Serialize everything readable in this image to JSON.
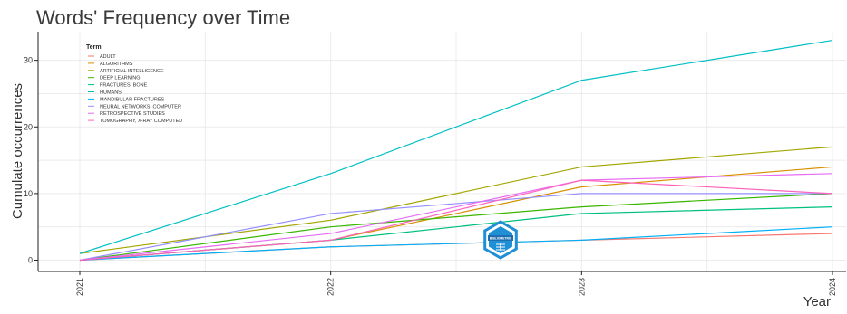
{
  "chart_data": {
    "type": "line",
    "title": "Words' Frequency over Time",
    "xlabel": "Year",
    "ylabel": "Cumulate occurrences",
    "x": [
      2021,
      2022,
      2023,
      2024
    ],
    "xticks": [
      "2021",
      "2022",
      "2023",
      "2024"
    ],
    "yticks": [
      0,
      10,
      20,
      30
    ],
    "ylim": [
      -1.7,
      34.3
    ],
    "grid": true,
    "legend": {
      "title": "Term",
      "placement": "top-left-inside"
    },
    "series": [
      {
        "name": "ADULT",
        "color": "#F8766D",
        "values": [
          0,
          2,
          3,
          4
        ]
      },
      {
        "name": "ALGORITHMS",
        "color": "#D89000",
        "values": [
          0,
          3,
          11,
          14
        ]
      },
      {
        "name": "ARTIFICIAL INTELLIGENCE",
        "color": "#A3A500",
        "values": [
          1,
          6,
          14,
          17
        ]
      },
      {
        "name": "DEEP LEARNING",
        "color": "#39B600",
        "values": [
          0,
          5,
          8,
          10
        ]
      },
      {
        "name": "FRACTURES, BONE",
        "color": "#00BF7D",
        "values": [
          0,
          3,
          7,
          8
        ]
      },
      {
        "name": "HUMANS",
        "color": "#00BFC4",
        "values": [
          1,
          13,
          27,
          33
        ]
      },
      {
        "name": "MANDIBULAR FRACTURES",
        "color": "#00B0F6",
        "values": [
          0,
          2,
          3,
          5
        ]
      },
      {
        "name": "NEURAL NETWORKS, COMPUTER",
        "color": "#9590FF",
        "values": [
          0,
          7,
          10,
          10
        ]
      },
      {
        "name": "RETROSPECTIVE STUDIES",
        "color": "#E76BF3",
        "values": [
          0,
          4,
          12,
          13
        ]
      },
      {
        "name": "TOMOGRAPHY, X-RAY COMPUTED",
        "color": "#FF62BC",
        "values": [
          0,
          3,
          12,
          10
        ]
      }
    ]
  },
  "logo": {
    "name": "bibliometrix-logo",
    "text": "BIBLIOMETRIX",
    "color": "#1f8fd6"
  }
}
